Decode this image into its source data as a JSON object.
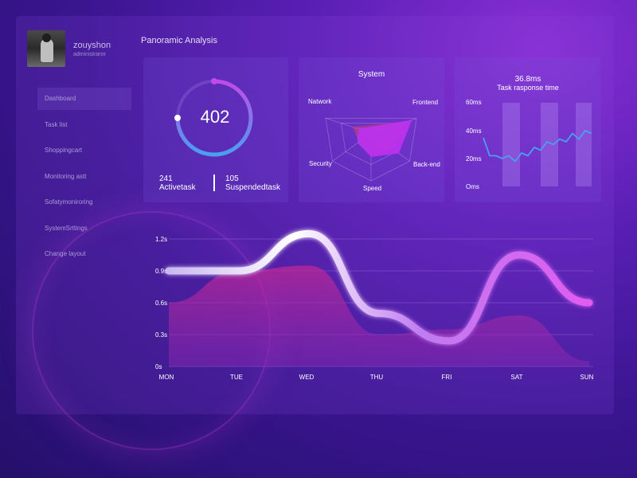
{
  "profile": {
    "username": "zouyshon",
    "role": "administraror"
  },
  "nav": {
    "items": [
      {
        "label": "Dashboard"
      },
      {
        "label": "Task list"
      },
      {
        "label": "Shoppingcart"
      },
      {
        "label": "Monitoring astt"
      },
      {
        "label": "Sofatymoniroring"
      },
      {
        "label": "SystemSrttings"
      },
      {
        "label": "Change layout"
      }
    ]
  },
  "page": {
    "title": "Panoramic Analysis"
  },
  "gauge": {
    "value": "402",
    "progress": 0.75,
    "stats": [
      {
        "number": "241",
        "label": "Activetask"
      },
      {
        "number": "105",
        "label": "Suspendedtask"
      }
    ]
  },
  "colors": {
    "accent": "#c04be8",
    "pink": "#e05cf0",
    "blue": "#4aa0f0",
    "purple": "#5a1fb5"
  },
  "chart_data": [
    {
      "type": "radar",
      "title": "System",
      "axes": [
        "Frontend",
        "Back-end",
        "Speed",
        "Security",
        "Natwork"
      ],
      "series": [
        {
          "values": [
            0.8,
            0.55,
            0.45,
            0.3,
            0.42
          ]
        },
        {
          "values": [
            0.9,
            0.72,
            0.5,
            0.35,
            0.28
          ]
        }
      ],
      "range": [
        0,
        1
      ]
    },
    {
      "type": "line",
      "value_text": "36.8ms",
      "title": "Task rasponse time",
      "yticks": [
        "60ms",
        "40ms",
        "20ms",
        "Oms"
      ],
      "ylim": [
        0,
        60
      ],
      "values": [
        35,
        22,
        22,
        20,
        22,
        18,
        24,
        22,
        28,
        26,
        32,
        30,
        34,
        32,
        38,
        34,
        40,
        38
      ]
    },
    {
      "type": "line",
      "categories": [
        "MON",
        "TUE",
        "WED",
        "THU",
        "FRI",
        "SAT",
        "SUN"
      ],
      "yticks": [
        "1.2s",
        "0.9s",
        "0.6s",
        "0.3s",
        "0s"
      ],
      "ylim": [
        0,
        1.2
      ],
      "series": [
        {
          "values": [
            0.9,
            0.9,
            1.25,
            0.5,
            0.24,
            1.05,
            0.6
          ]
        },
        {
          "values": [
            0.6,
            0.9,
            0.95,
            0.3,
            0.35,
            0.48,
            0.05
          ]
        }
      ]
    }
  ]
}
